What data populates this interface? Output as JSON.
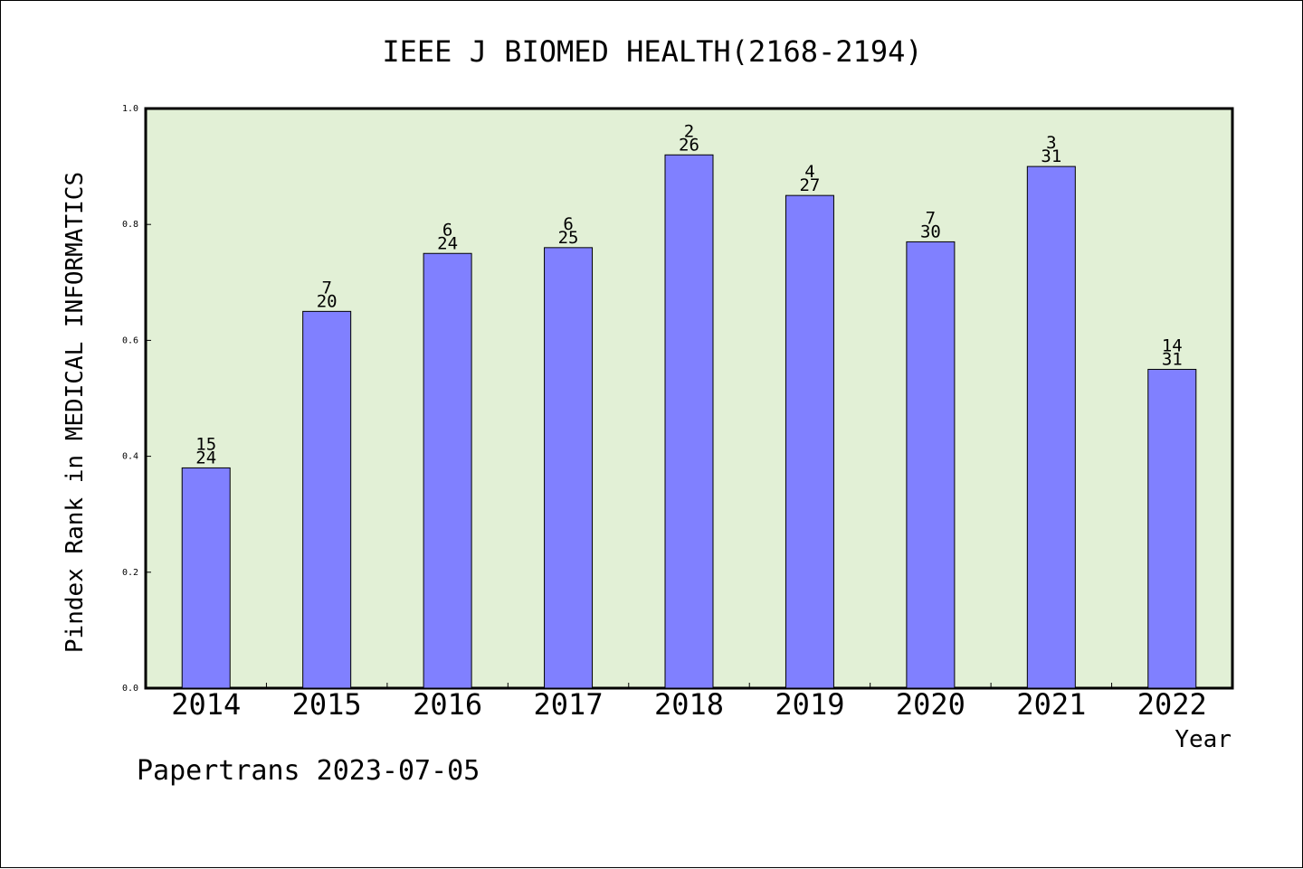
{
  "footer": {
    "note": "Papertrans 2023-07-05"
  },
  "chart_data": {
    "type": "bar",
    "title": "IEEE J BIOMED HEALTH(2168-2194)",
    "xlabel": "Year",
    "ylabel": "Pindex Rank in MEDICAL INFORMATICS",
    "ylim": [
      0,
      1.0
    ],
    "yticks": [
      "0.0",
      "0.2",
      "0.4",
      "0.6",
      "0.8",
      "1.0"
    ],
    "categories": [
      "2014",
      "2015",
      "2016",
      "2017",
      "2018",
      "2019",
      "2020",
      "2021",
      "2022"
    ],
    "values": [
      0.38,
      0.65,
      0.75,
      0.76,
      0.92,
      0.85,
      0.77,
      0.9,
      0.55
    ],
    "rank": [
      "15",
      "7",
      "6",
      "6",
      "2",
      "4",
      "7",
      "3",
      "14"
    ],
    "total": [
      "24",
      "20",
      "24",
      "25",
      "26",
      "27",
      "30",
      "31",
      "31"
    ],
    "grid": false,
    "colors": {
      "plot_bg": "#e2f0d6",
      "bar": "#8080ff",
      "frame": "#000000"
    }
  }
}
